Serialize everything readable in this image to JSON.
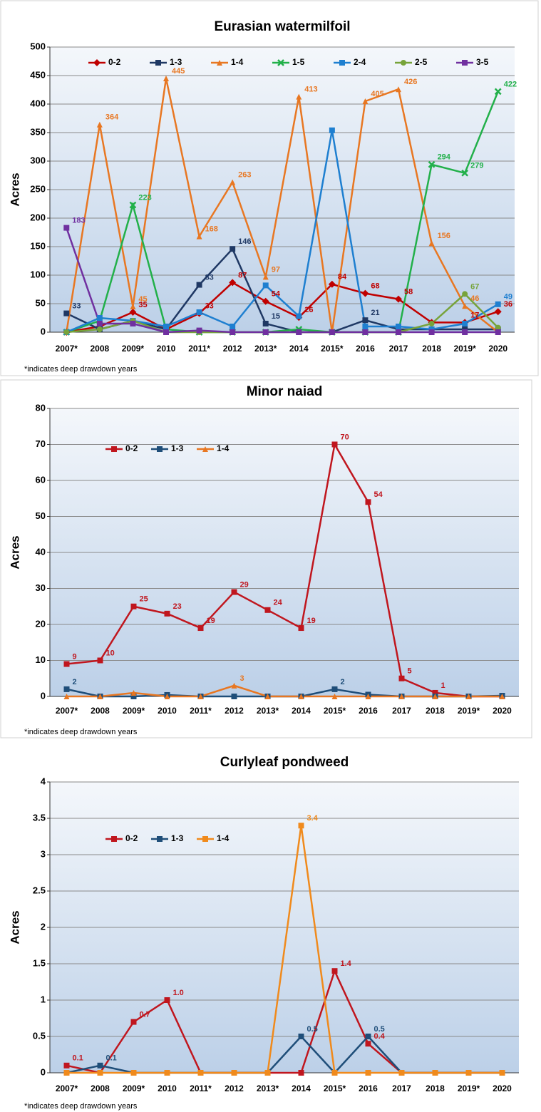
{
  "chart_data": [
    {
      "type": "line",
      "title": "Eurasian watermilfoil",
      "ylabel": "Acres",
      "note": "*indicates deep drawdown years",
      "categories": [
        "2007*",
        "2008",
        "2009*",
        "2010",
        "2011*",
        "2012",
        "2013*",
        "2014",
        "2015*",
        "2016",
        "2017",
        "2018",
        "2019*",
        "2020"
      ],
      "ylim": [
        0,
        500
      ],
      "yticks": [
        0,
        50,
        100,
        150,
        200,
        250,
        300,
        350,
        400,
        450,
        500
      ],
      "grid": true,
      "legend": "top",
      "series": [
        {
          "name": "0-2",
          "color": "#c00000",
          "marker": "diamond",
          "values": [
            0,
            10,
            35,
            5,
            33,
            87,
            54,
            26,
            84,
            68,
            58,
            17,
            17,
            36
          ],
          "value_labels": [
            null,
            null,
            "35",
            null,
            "33",
            "87",
            "54",
            "26",
            "84",
            "68",
            "58",
            null,
            "17",
            "36"
          ]
        },
        {
          "name": "1-3",
          "color": "#1f3864",
          "marker": "square",
          "values": [
            33,
            5,
            20,
            5,
            83,
            146,
            15,
            0,
            0,
            21,
            5,
            5,
            5,
            5
          ],
          "value_labels": [
            "33",
            null,
            null,
            null,
            "83",
            "146",
            "15",
            null,
            null,
            "21",
            null,
            null,
            null,
            null
          ]
        },
        {
          "name": "1-4",
          "color": "#e87722",
          "marker": "triangle",
          "values": [
            0,
            364,
            45,
            445,
            168,
            263,
            97,
            413,
            0,
            405,
            426,
            156,
            46,
            0
          ],
          "value_labels": [
            null,
            "364",
            "45",
            "445",
            "168",
            "263",
            "97",
            "413",
            null,
            "405",
            "426",
            "156",
            "46",
            null
          ]
        },
        {
          "name": "1-5",
          "color": "#22b04a",
          "marker": "x",
          "values": [
            0,
            20,
            223,
            5,
            0,
            0,
            0,
            5,
            0,
            0,
            0,
            294,
            279,
            422
          ],
          "value_labels": [
            null,
            null,
            "223",
            null,
            null,
            null,
            null,
            null,
            null,
            null,
            null,
            "294",
            "279",
            "422"
          ]
        },
        {
          "name": "2-4",
          "color": "#1e7fd0",
          "marker": "square",
          "values": [
            0,
            25,
            20,
            10,
            35,
            10,
            82,
            28,
            354,
            10,
            10,
            5,
            15,
            49
          ],
          "value_labels": [
            null,
            null,
            null,
            null,
            null,
            null,
            null,
            null,
            null,
            null,
            null,
            null,
            null,
            "49"
          ]
        },
        {
          "name": "2-5",
          "color": "#77a33a",
          "marker": "circle",
          "values": [
            0,
            5,
            20,
            0,
            0,
            0,
            0,
            0,
            0,
            0,
            0,
            15,
            67,
            8
          ],
          "value_labels": [
            null,
            null,
            null,
            null,
            null,
            null,
            null,
            null,
            null,
            null,
            null,
            null,
            "67",
            null
          ]
        },
        {
          "name": "3-5",
          "color": "#7030a0",
          "marker": "square",
          "values": [
            183,
            15,
            15,
            0,
            3,
            0,
            0,
            0,
            0,
            0,
            0,
            0,
            0,
            0
          ],
          "value_labels": [
            "183",
            null,
            null,
            null,
            null,
            null,
            null,
            null,
            null,
            null,
            null,
            null,
            null,
            null
          ]
        }
      ]
    },
    {
      "type": "line",
      "title": "Minor naiad",
      "ylabel": "Acres",
      "note": "*indicates deep drawdown years",
      "categories": [
        "2007*",
        "2008",
        "2009*",
        "2010",
        "2011*",
        "2012",
        "2013*",
        "2014",
        "2015*",
        "2016",
        "2017",
        "2018",
        "2019*",
        "2020"
      ],
      "ylim": [
        0,
        80
      ],
      "yticks": [
        0,
        10,
        20,
        30,
        40,
        50,
        60,
        70,
        80
      ],
      "grid": true,
      "legend": "top-left",
      "series": [
        {
          "name": "0-2",
          "color": "#c0161e",
          "marker": "square",
          "values": [
            9,
            10,
            25,
            23,
            19,
            29,
            24,
            19,
            70,
            54,
            5,
            1,
            0,
            0
          ],
          "value_labels": [
            "9",
            "10",
            "25",
            "23",
            "19",
            "29",
            "24",
            "19",
            "70",
            "54",
            "5",
            "1",
            null,
            null
          ]
        },
        {
          "name": "1-3",
          "color": "#1f4e79",
          "marker": "square",
          "values": [
            2,
            0,
            0,
            0.4,
            0,
            0,
            0,
            0,
            2,
            0.5,
            0,
            0,
            0,
            0.2
          ],
          "value_labels": [
            "2",
            null,
            null,
            null,
            null,
            null,
            null,
            null,
            "2",
            null,
            null,
            null,
            null,
            null
          ]
        },
        {
          "name": "1-4",
          "color": "#e87722",
          "marker": "triangle",
          "values": [
            0,
            0,
            1,
            0,
            0,
            3,
            0,
            0,
            0,
            0,
            0,
            0,
            0,
            0
          ],
          "value_labels": [
            null,
            null,
            null,
            null,
            null,
            "3",
            null,
            null,
            null,
            null,
            null,
            null,
            null,
            null
          ]
        }
      ]
    },
    {
      "type": "line",
      "title": "Curlyleaf pondweed",
      "ylabel": "Acres",
      "note": "*indicates deep drawdown years",
      "categories": [
        "2007*",
        "2008",
        "2009*",
        "2010",
        "2011*",
        "2012",
        "2013*",
        "2014",
        "2015*",
        "2016",
        "2017",
        "2018",
        "2019*",
        "2020"
      ],
      "ylim": [
        0,
        4
      ],
      "yticks": [
        0,
        0.5,
        1,
        1.5,
        2,
        2.5,
        3,
        3.5,
        4
      ],
      "grid": true,
      "legend": "top-left",
      "series": [
        {
          "name": "0-2",
          "color": "#c0161e",
          "marker": "square",
          "values": [
            0.1,
            0,
            0.7,
            1.0,
            0,
            0,
            0,
            0,
            1.4,
            0.4,
            0,
            0,
            0,
            0
          ],
          "value_labels": [
            "0.1",
            null,
            "0.7",
            "1.0",
            null,
            null,
            null,
            null,
            "1.4",
            "0.4",
            null,
            null,
            null,
            null
          ]
        },
        {
          "name": "1-3",
          "color": "#1f4e79",
          "marker": "square",
          "values": [
            0,
            0.1,
            0,
            0,
            0,
            0,
            0,
            0.5,
            0,
            0.5,
            0,
            0,
            0,
            0
          ],
          "value_labels": [
            null,
            "0.1",
            null,
            null,
            null,
            null,
            null,
            "0.5",
            null,
            "0.5",
            null,
            null,
            null,
            null
          ]
        },
        {
          "name": "1-4",
          "color": "#f08a1c",
          "marker": "square",
          "values": [
            0,
            0,
            0,
            0,
            0,
            0,
            0,
            3.4,
            0,
            0,
            0,
            0,
            0,
            0
          ],
          "value_labels": [
            null,
            null,
            null,
            null,
            null,
            null,
            null,
            "3.4",
            null,
            null,
            null,
            null,
            null,
            null
          ]
        }
      ]
    }
  ]
}
